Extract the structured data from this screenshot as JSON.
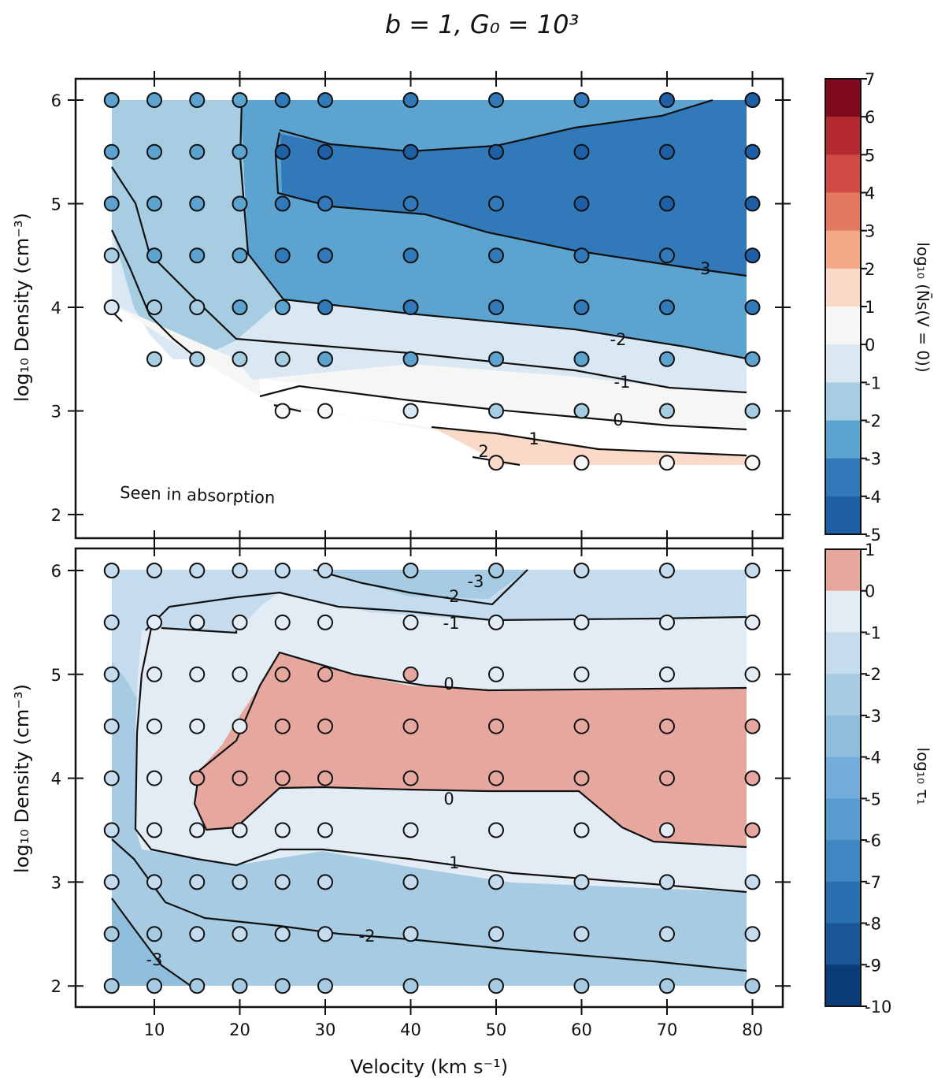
{
  "figure_title": "b = 1, G₀ = 10³",
  "chart_data": [
    {
      "type": "contour",
      "panel": "top",
      "xlabel": "Velocity (km s⁻¹)",
      "ylabel": "log₁₀ Density (cm⁻³)",
      "xlim": [
        1,
        84
      ],
      "ylim": [
        1.8,
        6.2
      ],
      "xticks": [
        10,
        20,
        30,
        40,
        50,
        60,
        70,
        80
      ],
      "yticks": [
        2,
        3,
        4,
        5,
        6
      ],
      "annotation": "Seen in absorption",
      "grid_velocities": [
        5,
        10,
        15,
        20,
        25,
        30,
        40,
        50,
        60,
        70,
        80
      ],
      "grid_densities": [
        2.5,
        3,
        3.5,
        4,
        4.5,
        5,
        5.5,
        6
      ],
      "points": [
        [
          5,
          6,
          -1.6
        ],
        [
          10,
          6,
          -1.5
        ],
        [
          15,
          6,
          -1.5
        ],
        [
          20,
          6,
          -1.6
        ],
        [
          25,
          6,
          -2.5
        ],
        [
          30,
          6,
          -2.5
        ],
        [
          40,
          6,
          -2.7
        ],
        [
          50,
          6,
          -2.8
        ],
        [
          60,
          6,
          -3.0
        ],
        [
          70,
          6,
          -3.1
        ],
        [
          80,
          6,
          -3.3
        ],
        [
          5,
          5.5,
          -1.5
        ],
        [
          10,
          5.5,
          -1.5
        ],
        [
          15,
          5.5,
          -1.5
        ],
        [
          20,
          5.5,
          -1.6
        ],
        [
          25,
          5.5,
          -3.1
        ],
        [
          30,
          5.5,
          -3.2
        ],
        [
          40,
          5.5,
          -3.3
        ],
        [
          50,
          5.5,
          -3.3
        ],
        [
          60,
          5.5,
          -3.3
        ],
        [
          70,
          5.5,
          -3.4
        ],
        [
          80,
          5.5,
          -3.5
        ],
        [
          5,
          5,
          -1.4
        ],
        [
          10,
          5,
          -1.5
        ],
        [
          15,
          5,
          -1.5
        ],
        [
          20,
          5,
          -1.6
        ],
        [
          25,
          5,
          -2.8
        ],
        [
          30,
          5,
          -2.9
        ],
        [
          40,
          5,
          -2.9
        ],
        [
          50,
          5,
          -3.0
        ],
        [
          60,
          5,
          -3.1
        ],
        [
          70,
          5,
          -3.2
        ],
        [
          80,
          5,
          -3.3
        ],
        [
          5,
          4.5,
          -0.6
        ],
        [
          10,
          4.5,
          -1.2
        ],
        [
          15,
          4.5,
          -1.4
        ],
        [
          20,
          4.5,
          -1.6
        ],
        [
          25,
          4.5,
          -2.6
        ],
        [
          30,
          4.5,
          -2.7
        ],
        [
          40,
          4.5,
          -2.7
        ],
        [
          50,
          4.5,
          -2.8
        ],
        [
          60,
          4.5,
          -2.9
        ],
        [
          70,
          4.5,
          -3.0
        ],
        [
          80,
          4.5,
          -3.1
        ],
        [
          5,
          4,
          0.5
        ],
        [
          10,
          4,
          -0.6
        ],
        [
          15,
          4,
          -0.9
        ],
        [
          20,
          4,
          -1.5
        ],
        [
          25,
          4,
          -1.9
        ],
        [
          30,
          4,
          -2.1
        ],
        [
          40,
          4,
          -2.1
        ],
        [
          50,
          4,
          -2.2
        ],
        [
          60,
          4,
          -2.3
        ],
        [
          70,
          4,
          -2.5
        ],
        [
          80,
          4,
          -2.6
        ],
        [
          10,
          3.5,
          -0.3
        ],
        [
          15,
          3.5,
          -0.4
        ],
        [
          20,
          3.5,
          -0.8
        ],
        [
          25,
          3.5,
          -1.0
        ],
        [
          30,
          3.5,
          -1.2
        ],
        [
          40,
          3.5,
          -1.3
        ],
        [
          50,
          3.5,
          -1.4
        ],
        [
          60,
          3.5,
          -1.5
        ],
        [
          70,
          3.5,
          -1.6
        ],
        [
          80,
          3.5,
          -1.7
        ],
        [
          25,
          3,
          1.3
        ],
        [
          30,
          3,
          1.2
        ],
        [
          40,
          3,
          0.3
        ],
        [
          50,
          3,
          -0.2
        ],
        [
          60,
          3,
          -0.3
        ],
        [
          70,
          3,
          -0.4
        ],
        [
          80,
          3,
          -0.5
        ],
        [
          50,
          2.5,
          2.1
        ],
        [
          60,
          2.5,
          1.6
        ],
        [
          70,
          2.5,
          1.5
        ],
        [
          80,
          2.5,
          1.4
        ]
      ],
      "contour_levels": [
        "-3",
        "-2",
        "-1",
        "0",
        "1",
        "2"
      ],
      "colorbar": {
        "label": "log₁₀ (N̄s(V = 0))",
        "ticks": [
          "7",
          "6",
          "5",
          "4",
          "3",
          "2",
          "1",
          "0",
          "-1",
          "-2",
          "-3",
          "-4",
          "-5"
        ],
        "min": -5,
        "max": 7
      }
    },
    {
      "type": "contour",
      "panel": "bottom",
      "xlabel": "Velocity (km s⁻¹)",
      "ylabel": "log₁₀ Density (cm⁻³)",
      "xlim": [
        1,
        84
      ],
      "ylim": [
        1.8,
        6.2
      ],
      "xticks": [
        10,
        20,
        30,
        40,
        50,
        60,
        70,
        80
      ],
      "yticks": [
        2,
        3,
        4,
        5,
        6
      ],
      "grid_velocities": [
        5,
        10,
        15,
        20,
        25,
        30,
        40,
        50,
        60,
        70,
        80
      ],
      "grid_densities": [
        2,
        2.5,
        3,
        3.5,
        4,
        4.5,
        5,
        5.5,
        6
      ],
      "points": [
        [
          5,
          6,
          -1.6
        ],
        [
          10,
          6,
          -1.5
        ],
        [
          15,
          6,
          -1.5
        ],
        [
          20,
          6,
          -1.5
        ],
        [
          25,
          6,
          -1.6
        ],
        [
          30,
          6,
          -1.8
        ],
        [
          40,
          6,
          -2.4
        ],
        [
          50,
          6,
          -2.8
        ],
        [
          60,
          6,
          -2.0
        ],
        [
          70,
          6,
          -1.6
        ],
        [
          80,
          6,
          -1.5
        ],
        [
          5,
          5.5,
          -1.4
        ],
        [
          10,
          5.5,
          -0.9
        ],
        [
          15,
          5.5,
          -0.9
        ],
        [
          20,
          5.5,
          -1.0
        ],
        [
          25,
          5.5,
          -0.8
        ],
        [
          30,
          5.5,
          -0.7
        ],
        [
          40,
          5.5,
          -0.9
        ],
        [
          50,
          5.5,
          -1.0
        ],
        [
          60,
          5.5,
          -0.9
        ],
        [
          70,
          5.5,
          -0.9
        ],
        [
          80,
          5.5,
          -0.9
        ],
        [
          5,
          5,
          -1.3
        ],
        [
          10,
          5,
          -0.6
        ],
        [
          15,
          5,
          -0.5
        ],
        [
          20,
          5,
          -0.4
        ],
        [
          25,
          5,
          0.2
        ],
        [
          30,
          5,
          0.3
        ],
        [
          40,
          5,
          0.1
        ],
        [
          50,
          5,
          -0.1
        ],
        [
          60,
          5,
          -0.1
        ],
        [
          70,
          5,
          -0.1
        ],
        [
          80,
          5,
          -0.1
        ],
        [
          5,
          4.5,
          -1.3
        ],
        [
          10,
          4.5,
          -0.6
        ],
        [
          15,
          4.5,
          -0.3
        ],
        [
          20,
          4.5,
          -0.1
        ],
        [
          25,
          4.5,
          0.4
        ],
        [
          30,
          4.5,
          0.5
        ],
        [
          40,
          4.5,
          0.5
        ],
        [
          50,
          4.5,
          0.5
        ],
        [
          60,
          4.5,
          0.5
        ],
        [
          70,
          4.5,
          0.5
        ],
        [
          80,
          4.5,
          0.5
        ],
        [
          5,
          4,
          -1.3
        ],
        [
          10,
          4,
          -0.6
        ],
        [
          15,
          4,
          0.1
        ],
        [
          20,
          4,
          0.2
        ],
        [
          25,
          4,
          0.4
        ],
        [
          30,
          4,
          0.5
        ],
        [
          40,
          4,
          0.5
        ],
        [
          50,
          4,
          0.5
        ],
        [
          60,
          4,
          0.5
        ],
        [
          70,
          4,
          0.5
        ],
        [
          80,
          4,
          0.5
        ],
        [
          5,
          3.5,
          -1.1
        ],
        [
          10,
          3.5,
          -0.7
        ],
        [
          15,
          3.5,
          -0.3
        ],
        [
          20,
          3.5,
          -0.1
        ],
        [
          25,
          3.5,
          -0.3
        ],
        [
          30,
          3.5,
          -0.4
        ],
        [
          40,
          3.5,
          -0.4
        ],
        [
          50,
          3.5,
          -0.4
        ],
        [
          60,
          3.5,
          -0.3
        ],
        [
          70,
          3.5,
          -0.2
        ],
        [
          80,
          3.5,
          0.1
        ],
        [
          5,
          3,
          -1.7
        ],
        [
          10,
          3,
          -1.3
        ],
        [
          15,
          3,
          -1.2
        ],
        [
          20,
          3,
          -1.1
        ],
        [
          25,
          3,
          -1.1
        ],
        [
          30,
          3,
          -1.2
        ],
        [
          40,
          3,
          -1.3
        ],
        [
          50,
          3,
          -1.3
        ],
        [
          60,
          3,
          -1.3
        ],
        [
          70,
          3,
          -1.3
        ],
        [
          80,
          3,
          -1.2
        ],
        [
          5,
          2.5,
          -2.3
        ],
        [
          10,
          2.5,
          -2.3
        ],
        [
          15,
          2.5,
          -1.9
        ],
        [
          20,
          2.5,
          -1.8
        ],
        [
          25,
          2.5,
          -1.9
        ],
        [
          30,
          2.5,
          -2.0
        ],
        [
          40,
          2.5,
          -1.9
        ],
        [
          50,
          2.5,
          -1.8
        ],
        [
          60,
          2.5,
          -1.7
        ],
        [
          70,
          2.5,
          -1.7
        ],
        [
          80,
          2.5,
          -1.6
        ],
        [
          5,
          2,
          -2.6
        ],
        [
          10,
          2,
          -2.5
        ],
        [
          15,
          2,
          -2.4
        ],
        [
          20,
          2,
          -2.3
        ],
        [
          25,
          2,
          -2.3
        ],
        [
          30,
          2,
          -2.3
        ],
        [
          40,
          2,
          -2.3
        ],
        [
          50,
          2,
          -2.2
        ],
        [
          60,
          2,
          -2.2
        ],
        [
          70,
          2,
          -2.2
        ],
        [
          80,
          2,
          -2.1
        ]
      ],
      "contour_levels": [
        "-3",
        "-2",
        "-1",
        "0"
      ],
      "colorbar": {
        "label": "log₁₀ τ₁",
        "ticks": [
          "1",
          "0",
          "-1",
          "-2",
          "-3",
          "-4",
          "-5",
          "-6",
          "-7",
          "-8",
          "-9",
          "-10"
        ],
        "min": -10,
        "max": 1
      }
    }
  ]
}
